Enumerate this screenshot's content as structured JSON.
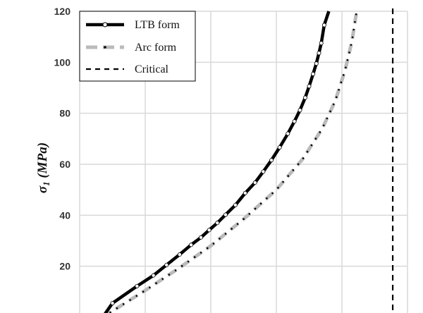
{
  "chart_data": {
    "type": "line",
    "title": "",
    "xlabel": "",
    "ylabel": "σ1 (MPa)",
    "ylabel_main": "σ",
    "ylabel_sub": "1",
    "ylabel_unit": " (MPa)",
    "ylim": [
      0,
      120
    ],
    "yticks": [
      20,
      40,
      60,
      80,
      100,
      120
    ],
    "grid": true,
    "legend_position": "top-left",
    "series": [
      {
        "name": "LTB form",
        "color": "#000000",
        "style": "solid-with-hollow-markers",
        "points": [
          [
            0.7,
            0
          ],
          [
            1.0,
            5.5
          ],
          [
            1.75,
            12.2
          ],
          [
            2.25,
            16.4
          ],
          [
            2.65,
            20.5
          ],
          [
            3.05,
            24.6
          ],
          [
            3.4,
            28.4
          ],
          [
            3.7,
            31.3
          ],
          [
            3.95,
            34.2
          ],
          [
            4.2,
            37.0
          ],
          [
            4.45,
            40.2
          ],
          [
            4.75,
            44.0
          ],
          [
            5.05,
            48.7
          ],
          [
            5.35,
            52.8
          ],
          [
            5.6,
            57.1
          ],
          [
            5.85,
            61.6
          ],
          [
            6.1,
            66.6
          ],
          [
            6.35,
            72.0
          ],
          [
            6.55,
            76.8
          ],
          [
            6.72,
            81.2
          ],
          [
            6.88,
            86.1
          ],
          [
            7.0,
            90.6
          ],
          [
            7.12,
            95.4
          ],
          [
            7.22,
            99.5
          ],
          [
            7.3,
            103.6
          ],
          [
            7.37,
            107.5
          ],
          [
            7.46,
            114.6
          ],
          [
            7.6,
            120
          ]
        ]
      },
      {
        "name": "Arc form",
        "color": "#bbbbbb",
        "style": "dash-dot",
        "points": [
          [
            0.7,
            0
          ],
          [
            2.0,
            10.5
          ],
          [
            3.0,
            19.0
          ],
          [
            4.0,
            28.0
          ],
          [
            5.0,
            38.5
          ],
          [
            6.0,
            50.0
          ],
          [
            6.8,
            62.0
          ],
          [
            7.4,
            74.0
          ],
          [
            7.8,
            85.0
          ],
          [
            8.1,
            97.0
          ],
          [
            8.3,
            108.0
          ],
          [
            8.45,
            120
          ]
        ]
      },
      {
        "name": "Critical",
        "color": "#000000",
        "style": "dashed",
        "x_value": 9.55
      }
    ]
  }
}
